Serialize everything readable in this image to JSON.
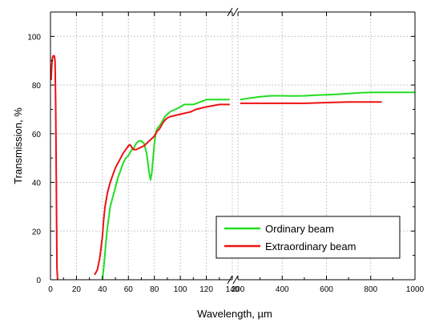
{
  "chart_data": {
    "type": "line",
    "title": "",
    "xlabel": "Wavelength, µm",
    "ylabel": "Transmission, %",
    "ylim": [
      0,
      110
    ],
    "grid": true,
    "x_axis_segments": [
      {
        "range": [
          0,
          140
        ],
        "ticks": [
          0,
          20,
          40,
          60,
          80,
          100,
          120,
          140
        ]
      },
      {
        "range": [
          200,
          1000
        ],
        "ticks": [
          200,
          400,
          600,
          800,
          1000
        ]
      }
    ],
    "x_tick_labels": [
      "0",
      "20",
      "40",
      "60",
      "80",
      "100",
      "120",
      "140",
      "200",
      "400",
      "600",
      "800",
      "1000"
    ],
    "y_ticks": [
      0,
      20,
      40,
      60,
      80,
      100
    ],
    "y_tick_labels": [
      "0",
      "20",
      "40",
      "60",
      "80",
      "100"
    ],
    "legend": {
      "position": "bottom-right",
      "entries": [
        "Ordinary beam",
        "Extraordinary beam"
      ]
    },
    "series": [
      {
        "name": "Ordinary beam",
        "color": "#22dd22",
        "points": [
          [
            40,
            0
          ],
          [
            41,
            5
          ],
          [
            42,
            11
          ],
          [
            43,
            17
          ],
          [
            44,
            22
          ],
          [
            45,
            26
          ],
          [
            46,
            30
          ],
          [
            48,
            34
          ],
          [
            50,
            38
          ],
          [
            52,
            42
          ],
          [
            54,
            45
          ],
          [
            56,
            48
          ],
          [
            58,
            50
          ],
          [
            60,
            51
          ],
          [
            62,
            53
          ],
          [
            64,
            54
          ],
          [
            66,
            56
          ],
          [
            68,
            57
          ],
          [
            70,
            57
          ],
          [
            72,
            56
          ],
          [
            74,
            52
          ],
          [
            76,
            44
          ],
          [
            77,
            41
          ],
          [
            78,
            44
          ],
          [
            79,
            50
          ],
          [
            80,
            56
          ],
          [
            81,
            60
          ],
          [
            82,
            62
          ],
          [
            85,
            64
          ],
          [
            88,
            67
          ],
          [
            92,
            69
          ],
          [
            96,
            70
          ],
          [
            100,
            71
          ],
          [
            103,
            72
          ],
          [
            107,
            72
          ],
          [
            110,
            72
          ],
          [
            115,
            73
          ],
          [
            120,
            74
          ],
          [
            125,
            74
          ],
          [
            130,
            74
          ],
          [
            135,
            74
          ],
          [
            138,
            74
          ],
          [
            210,
            74
          ],
          [
            250,
            74.6
          ],
          [
            300,
            75.2
          ],
          [
            350,
            75.6
          ],
          [
            400,
            75.6
          ],
          [
            450,
            75.5
          ],
          [
            500,
            75.6
          ],
          [
            550,
            75.8
          ],
          [
            600,
            76
          ],
          [
            650,
            76.2
          ],
          [
            700,
            76.5
          ],
          [
            750,
            76.8
          ],
          [
            800,
            77
          ],
          [
            850,
            77
          ],
          [
            900,
            77
          ],
          [
            950,
            77
          ],
          [
            1000,
            77
          ]
        ]
      },
      {
        "name": "Extraordinary beam",
        "color": "#ee1111",
        "points": [
          [
            0.5,
            82
          ],
          [
            1,
            88
          ],
          [
            1.5,
            91
          ],
          [
            2,
            92
          ],
          [
            3,
            92
          ],
          [
            3.5,
            90
          ],
          [
            4,
            72
          ],
          [
            4.5,
            40
          ],
          [
            5,
            5
          ],
          [
            5.5,
            0
          ],
          [
            34,
            2
          ],
          [
            36,
            4
          ],
          [
            38,
            9
          ],
          [
            40,
            18
          ],
          [
            41,
            25
          ],
          [
            42,
            30
          ],
          [
            44,
            36
          ],
          [
            46,
            40
          ],
          [
            48,
            43
          ],
          [
            50,
            46
          ],
          [
            52,
            48
          ],
          [
            54,
            50
          ],
          [
            56,
            52
          ],
          [
            58,
            53.5
          ],
          [
            60,
            55
          ],
          [
            61,
            55.5
          ],
          [
            62,
            55
          ],
          [
            63,
            54
          ],
          [
            64,
            53.5
          ],
          [
            66,
            53.5
          ],
          [
            68,
            54
          ],
          [
            70,
            54.5
          ],
          [
            72,
            55
          ],
          [
            74,
            56
          ],
          [
            76,
            57
          ],
          [
            78,
            58
          ],
          [
            80,
            59
          ],
          [
            82,
            61
          ],
          [
            84,
            62
          ],
          [
            86,
            64
          ],
          [
            88,
            65.5
          ],
          [
            90,
            66.5
          ],
          [
            92,
            67
          ],
          [
            96,
            67.5
          ],
          [
            100,
            68
          ],
          [
            104,
            68.5
          ],
          [
            108,
            69
          ],
          [
            112,
            70
          ],
          [
            116,
            70.5
          ],
          [
            120,
            71
          ],
          [
            125,
            71.5
          ],
          [
            130,
            72
          ],
          [
            138,
            72
          ],
          [
            210,
            72.5
          ],
          [
            250,
            72.5
          ],
          [
            300,
            72.5
          ],
          [
            400,
            72.5
          ],
          [
            500,
            72.5
          ],
          [
            600,
            72.8
          ],
          [
            700,
            73
          ],
          [
            750,
            73
          ],
          [
            800,
            73
          ],
          [
            850,
            73
          ]
        ]
      }
    ]
  }
}
